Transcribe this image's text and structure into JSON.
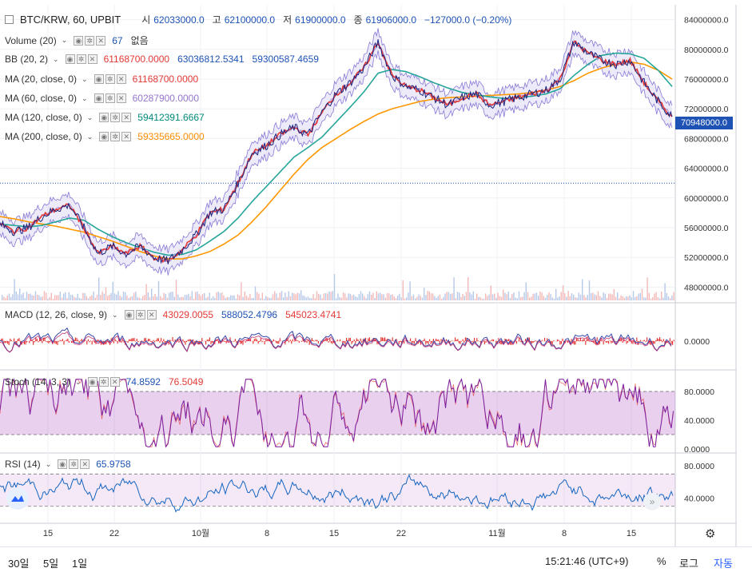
{
  "header": {
    "symbol": "BTC/KRW, 60, UPBIT",
    "open_label": "시",
    "open": "62033000.0",
    "high_label": "고",
    "high": "62100000.0",
    "low_label": "저",
    "low": "61900000.0",
    "close_label": "종",
    "close": "61906000.0",
    "change": "−127000.0 (−0.20%)"
  },
  "indicators": {
    "volume": {
      "name": "Volume (20)",
      "value": "67",
      "extra": "없음"
    },
    "bb": {
      "name": "BB (20, 2)",
      "basis": "61168700.0000",
      "upper": "63036812.5341",
      "lower": "59300587.4659"
    },
    "ma20": {
      "name": "MA (20, close, 0)",
      "value": "61168700.0000"
    },
    "ma60": {
      "name": "MA (60, close, 0)",
      "value": "60287900.0000"
    },
    "ma120": {
      "name": "MA (120, close, 0)",
      "value": "59412391.6667"
    },
    "ma200": {
      "name": "MA (200, close, 0)",
      "value": "59335665.0000"
    },
    "macd": {
      "name": "MACD (12, 26, close, 9)",
      "hist": "43029.0055",
      "macd": "588052.4796",
      "signal": "545023.4741"
    },
    "stoch": {
      "name": "Stoch (14, 3, 3)",
      "k": "74.8592",
      "d": "76.5049"
    },
    "rsi": {
      "name": "RSI (14)",
      "value": "65.9758"
    }
  },
  "last_price": "70948000.0",
  "colors": {
    "up": "#1a237e",
    "bb_band": "#6a5acd",
    "ma20": "#e53935",
    "ma60": "#b39ddb",
    "ma120": "#26a69a",
    "ma200": "#ff9800",
    "accent": "#1e53b5",
    "osc": "#7b1fa2",
    "rsi": "#1565c0"
  },
  "bottom_bar": {
    "timeframes": [
      "30일",
      "5일",
      "1일"
    ],
    "clock": "15:21:46 (UTC+9)",
    "percent": "%",
    "log": "로그",
    "auto": "자동"
  },
  "icons": [
    "gear-icon",
    "tradingview-logo-icon",
    "scroll-to-realtime-icon"
  ],
  "chart_data": {
    "type": "line",
    "series_note_values_in_KRW": true,
    "x_ticks": [
      "15",
      "22",
      "10월",
      "8",
      "15",
      "22",
      "11월",
      "8",
      "15"
    ],
    "price": {
      "ylim": [
        46000000,
        86000000
      ],
      "y_ticks": [
        48000000,
        52000000,
        56000000,
        60000000,
        64000000,
        68000000,
        72000000,
        76000000,
        80000000,
        84000000
      ],
      "y_tick_labels": [
        "48000000.0",
        "52000000.0",
        "56000000.0",
        "60000000.0",
        "64000000.0",
        "68000000.0",
        "72000000.0",
        "76000000.0",
        "80000000.0",
        "84000000.0"
      ],
      "reference_line": 62000000,
      "close": [
        56500000,
        55500000,
        56000000,
        57500000,
        58500000,
        59000000,
        56000000,
        52500000,
        53500000,
        52500000,
        53500000,
        52000000,
        51500000,
        53000000,
        55000000,
        58000000,
        58500000,
        62000000,
        66000000,
        67000000,
        68500000,
        69500000,
        68500000,
        71500000,
        74000000,
        75500000,
        77500000,
        81000000,
        76500000,
        75000000,
        74500000,
        73500000,
        72500000,
        73500000,
        74000000,
        72500000,
        73000000,
        73500000,
        74000000,
        74500000,
        76000000,
        81000000,
        79500000,
        78500000,
        78000000,
        78500000,
        75500000,
        73000000,
        70948000
      ],
      "ma200": [
        57500000,
        57200000,
        56800000,
        56500000,
        56200000,
        55800000,
        55400000,
        54800000,
        54200000,
        53500000,
        52800000,
        52200000,
        51800000,
        51800000,
        52200000,
        52800000,
        53800000,
        55000000,
        56800000,
        58800000,
        61000000,
        63200000,
        65200000,
        66800000,
        68000000,
        69200000,
        70300000,
        71300000,
        72000000,
        72500000,
        73000000,
        73300000,
        73500000,
        73600000,
        73700000,
        73800000,
        73900000,
        74000000,
        74200000,
        74500000,
        75000000,
        75800000,
        76800000,
        77500000,
        78000000,
        78300000,
        78000000,
        77200000,
        76000000
      ],
      "ma120": [
        56500000,
        56300000,
        56100000,
        56300000,
        56800000,
        57300000,
        57000000,
        55800000,
        54800000,
        54000000,
        53300000,
        52700000,
        52300000,
        52400000,
        53000000,
        54200000,
        55500000,
        57300000,
        59500000,
        61500000,
        63500000,
        65500000,
        66800000,
        68200000,
        70200000,
        72200000,
        74300000,
        76800000,
        77300000,
        77000000,
        76300000,
        75500000,
        74800000,
        74200000,
        73900000,
        73600000,
        73400000,
        73500000,
        73700000,
        74000000,
        74700000,
        76500000,
        78000000,
        79200000,
        79500000,
        79400000,
        78800000,
        77200000,
        75000000
      ]
    },
    "macd": {
      "y_ticks": [
        0
      ],
      "y_tick_labels": [
        "0.0000"
      ]
    },
    "stoch": {
      "ylim": [
        0,
        100
      ],
      "y_ticks": [
        0,
        40,
        80
      ],
      "y_tick_labels": [
        "0.0000",
        "40.0000",
        "80.0000"
      ],
      "bands": [
        20,
        80
      ]
    },
    "rsi": {
      "ylim": [
        10,
        95
      ],
      "y_ticks": [
        40,
        80
      ],
      "y_tick_labels": [
        "40.0000",
        "80.0000"
      ],
      "bands": [
        30,
        70
      ]
    }
  }
}
